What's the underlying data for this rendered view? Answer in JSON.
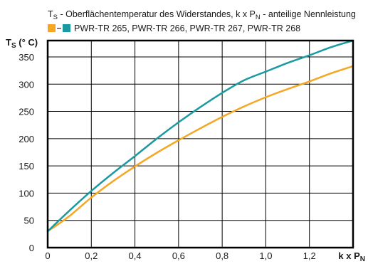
{
  "chart_data": {
    "type": "line",
    "title": {
      "t": "T",
      "t_sub": "S",
      "mid": " - Oberflächentemperatur des Widerstandes, k x P",
      "p_sub": "N",
      "end": " - anteilige Nennleistung"
    },
    "legend_text": "PWR-TR 265, PWR-TR 266, PWR-TR 267, PWR-TR 268",
    "ylabel": {
      "main": "T",
      "sub": "S",
      "rest": " (° C)"
    },
    "xlabel": {
      "main": "k x P",
      "sub": "N"
    },
    "xlim": [
      0,
      1.4
    ],
    "ylim": [
      0,
      380
    ],
    "x_ticks": [
      "0",
      "0,2",
      "0,4",
      "0,6",
      "0,8",
      "1,0",
      "1,2"
    ],
    "x_tick_values": [
      0,
      0.2,
      0.4,
      0.6,
      0.8,
      1.0,
      1.2
    ],
    "y_ticks": [
      "0",
      "50",
      "100",
      "150",
      "200",
      "250",
      "300",
      "350"
    ],
    "y_tick_values": [
      0,
      50,
      100,
      150,
      200,
      250,
      300,
      350
    ],
    "grid": true,
    "series": [
      {
        "color": "#F5A623",
        "x": [
          0,
          0.1,
          0.2,
          0.3,
          0.4,
          0.5,
          0.6,
          0.7,
          0.8,
          0.9,
          1.0,
          1.1,
          1.2,
          1.3,
          1.4
        ],
        "y": [
          30,
          58,
          92,
          122,
          149,
          174,
          197,
          219,
          240,
          259,
          276,
          291,
          305,
          320,
          333
        ]
      },
      {
        "color": "#1A9AA0",
        "x": [
          0,
          0.1,
          0.2,
          0.3,
          0.4,
          0.5,
          0.6,
          0.7,
          0.8,
          0.9,
          1.0,
          1.1,
          1.2,
          1.3,
          1.4
        ],
        "y": [
          30,
          68,
          104,
          137,
          168,
          200,
          230,
          258,
          284,
          307,
          323,
          339,
          353,
          368,
          380
        ]
      }
    ]
  }
}
